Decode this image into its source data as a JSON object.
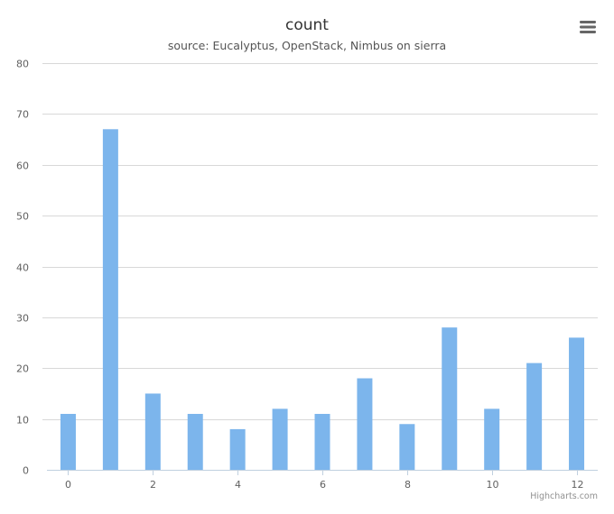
{
  "chart_data": {
    "type": "bar",
    "title": "count",
    "subtitle": "source: Eucalyptus, OpenStack, Nimbus on sierra",
    "x": [
      0,
      1,
      2,
      3,
      4,
      5,
      6,
      7,
      8,
      9,
      10,
      11,
      12
    ],
    "values": [
      11,
      67,
      15,
      11,
      8,
      12,
      11,
      18,
      9,
      28,
      12,
      21,
      26
    ],
    "x_ticks": [
      0,
      2,
      4,
      6,
      8,
      10,
      12
    ],
    "y_ticks": [
      0,
      10,
      20,
      30,
      40,
      50,
      60,
      70,
      80
    ],
    "ylim": [
      0,
      80
    ],
    "xlim": [
      -0.5,
      12.5
    ],
    "grid": true,
    "legend": "none",
    "bar_color": "#7cb5ec",
    "credits": "Highcharts.com"
  },
  "colors": {
    "bar": "#7cb5ec",
    "grid": "#d8d8d8",
    "axis_line": "#c0d0e0",
    "tick_label": "#606060",
    "title": "#333333",
    "subtitle": "#555555",
    "credits": "#909090",
    "menu_icon": "#666666"
  },
  "toolbar": {
    "menu_icon": "hamburger-menu-icon"
  }
}
